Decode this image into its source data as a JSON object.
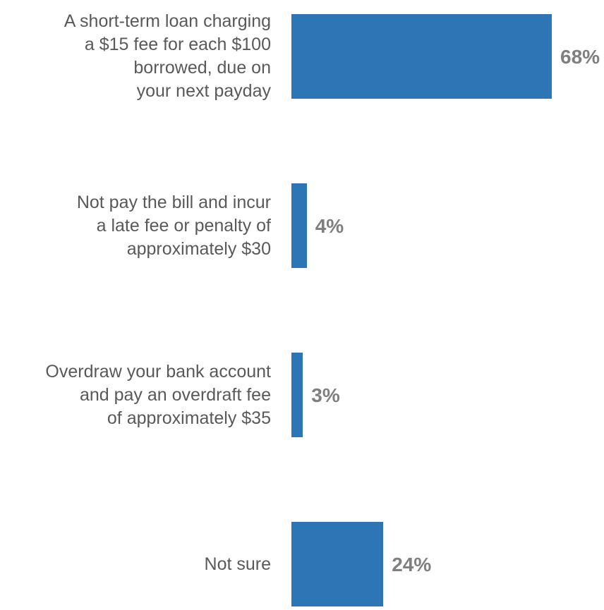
{
  "chart_data": {
    "type": "bar",
    "orientation": "horizontal",
    "categories": [
      "A short-term loan charging\na $15 fee for each $100\nborrowed, due on\nyour next payday",
      "Not pay the bill and incur\na late fee or penalty of\napproximately $30",
      "Overdraw your bank account\nand pay an overdraft fee\nof approximately $35",
      "Not sure"
    ],
    "values": [
      68,
      4,
      3,
      24
    ],
    "value_labels": [
      "68%",
      "4%",
      "3%",
      "24%"
    ],
    "unit": "%",
    "xlim": [
      0,
      68
    ],
    "grid": false,
    "legend": "none",
    "bar_color": "#2E75B6",
    "label_color": "#595959",
    "value_label_color": "#7F7F7F"
  }
}
